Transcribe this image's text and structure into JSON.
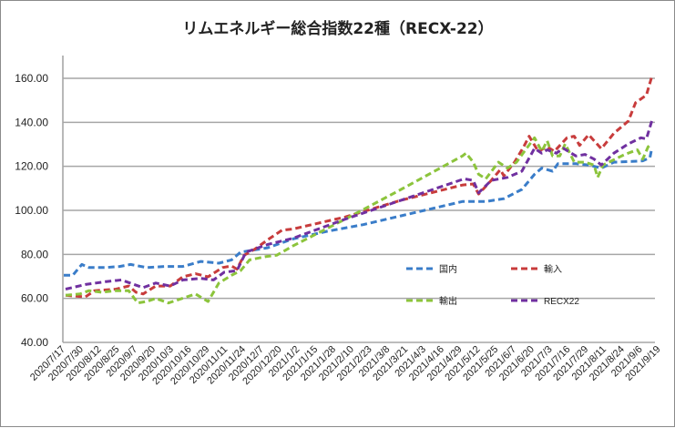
{
  "chart_data": {
    "type": "line",
    "title": "リムエネルギー総合指数22種（RECX-22）",
    "xlabel": "",
    "ylabel": "",
    "ylim": [
      40,
      160
    ],
    "yticks": [
      "40.00",
      "60.00",
      "80.00",
      "100.00",
      "120.00",
      "140.00",
      "160.00"
    ],
    "grid": true,
    "legend_placement": "inside-bottom-right",
    "x_note": "x values are positions in units of the tick-label index (0 = 2020/7/17, 32 = 2021/9/19)",
    "categories": [
      "2020/7/17",
      "2020/7/30",
      "2020/8/12",
      "2020/8/25",
      "2020/9/7",
      "2020/9/20",
      "2020/10/3",
      "2020/10/16",
      "2020/10/29",
      "2020/11/11",
      "2020/11/24",
      "2020/12/7",
      "2020/12/20",
      "2021/1/2",
      "2021/1/15",
      "2021/1/28",
      "2021/2/10",
      "2021/2/23",
      "2021/3/8",
      "2021/3/21",
      "2021/4/3",
      "2021/4/16",
      "2021/4/29",
      "2021/5/12",
      "2021/5/25",
      "2021/6/7",
      "2021/6/20",
      "2021/7/3",
      "2021/7/16",
      "2021/7/29",
      "2021/8/11",
      "2021/8/24",
      "2021/9/6",
      "2021/9/19"
    ],
    "series": [
      {
        "name": "国内",
        "color": "#3a7dc9",
        "points": [
          [
            -0.1,
            70.5
          ],
          [
            0.4,
            70.5
          ],
          [
            0.9,
            75.4
          ],
          [
            1.3,
            74
          ],
          [
            2.2,
            74
          ],
          [
            3.0,
            74.5
          ],
          [
            3.6,
            75.4
          ],
          [
            4.5,
            74
          ],
          [
            5.5,
            74.5
          ],
          [
            6.5,
            74.5
          ],
          [
            7.5,
            76.8
          ],
          [
            8.5,
            76
          ],
          [
            9.2,
            77.5
          ],
          [
            9.7,
            81
          ],
          [
            11.2,
            83
          ],
          [
            12.6,
            87
          ],
          [
            14.5,
            90.5
          ],
          [
            16.5,
            93.5
          ],
          [
            18.6,
            97.5
          ],
          [
            19.9,
            100
          ],
          [
            22,
            104
          ],
          [
            23.3,
            104
          ],
          [
            24.3,
            105.3
          ],
          [
            25.3,
            109.5
          ],
          [
            26,
            116.4
          ],
          [
            26.4,
            119.2
          ],
          [
            27,
            117.8
          ],
          [
            27.3,
            121.2
          ],
          [
            28.3,
            121.2
          ],
          [
            29,
            120.6
          ],
          [
            29.7,
            119.2
          ],
          [
            30.4,
            121.9
          ],
          [
            31.4,
            122.2
          ],
          [
            32,
            122.5
          ],
          [
            32.4,
            124
          ],
          [
            32.5,
            128
          ]
        ]
      },
      {
        "name": "輸入",
        "color": "#c83c3c",
        "points": [
          [
            0,
            61.4
          ],
          [
            1.1,
            60.7
          ],
          [
            1.6,
            63.5
          ],
          [
            2.8,
            64.2
          ],
          [
            3.5,
            65.6
          ],
          [
            3.9,
            62.8
          ],
          [
            4.3,
            62
          ],
          [
            5,
            65.6
          ],
          [
            5.8,
            65.6
          ],
          [
            6.5,
            69.8
          ],
          [
            7.2,
            71.2
          ],
          [
            7.9,
            69.8
          ],
          [
            8.7,
            74
          ],
          [
            9.2,
            74.7
          ],
          [
            9.5,
            73.3
          ],
          [
            9.9,
            79.6
          ],
          [
            10.5,
            82.4
          ],
          [
            11.2,
            86.6
          ],
          [
            12.0,
            91
          ],
          [
            12.6,
            91.5
          ],
          [
            15.5,
            97
          ],
          [
            18.6,
            104.6
          ],
          [
            22,
            111.5
          ],
          [
            22.6,
            112
          ],
          [
            22.9,
            107.4
          ],
          [
            23.6,
            113.6
          ],
          [
            24.1,
            118.5
          ],
          [
            24.3,
            115.7
          ],
          [
            24.9,
            122
          ],
          [
            25.4,
            128.9
          ],
          [
            25.7,
            133.7
          ],
          [
            26.2,
            126.8
          ],
          [
            26.7,
            128.9
          ],
          [
            27.1,
            126.8
          ],
          [
            27.8,
            133
          ],
          [
            28.2,
            133.7
          ],
          [
            28.5,
            129.5
          ],
          [
            29,
            134.4
          ],
          [
            29.7,
            128
          ],
          [
            30.4,
            135
          ],
          [
            31.2,
            140.6
          ],
          [
            31.6,
            148.9
          ],
          [
            32.2,
            152.4
          ],
          [
            32.5,
            160.7
          ]
        ]
      },
      {
        "name": "輸出",
        "color": "#8cc43c",
        "points": [
          [
            0,
            61.4
          ],
          [
            0.8,
            62
          ],
          [
            1.3,
            63.5
          ],
          [
            2,
            62.8
          ],
          [
            2.8,
            63.5
          ],
          [
            3.5,
            63.5
          ],
          [
            4,
            57.9
          ],
          [
            4.5,
            58.6
          ],
          [
            5,
            60
          ],
          [
            5.7,
            57.9
          ],
          [
            6.2,
            59.3
          ],
          [
            7.2,
            62
          ],
          [
            7.9,
            58.6
          ],
          [
            8.5,
            67
          ],
          [
            9.2,
            70.5
          ],
          [
            9.7,
            72.6
          ],
          [
            10.2,
            77.5
          ],
          [
            11.1,
            79
          ],
          [
            11.7,
            79.6
          ],
          [
            12.6,
            83.8
          ],
          [
            15.5,
            96
          ],
          [
            18.6,
            109.5
          ],
          [
            22,
            124.7
          ],
          [
            22.2,
            126
          ],
          [
            22.6,
            121.9
          ],
          [
            22.9,
            116.4
          ],
          [
            23.3,
            114.3
          ],
          [
            24,
            121.9
          ],
          [
            24.5,
            119.2
          ],
          [
            25,
            121.9
          ],
          [
            25.5,
            127.5
          ],
          [
            26,
            133
          ],
          [
            26.4,
            126.8
          ],
          [
            26.7,
            131.6
          ],
          [
            27,
            124.7
          ],
          [
            27.4,
            124.7
          ],
          [
            27.7,
            130.2
          ],
          [
            28.2,
            121.9
          ],
          [
            28.8,
            121.9
          ],
          [
            29.3,
            120.6
          ],
          [
            29.5,
            115
          ],
          [
            29.8,
            120.6
          ],
          [
            30.3,
            122.6
          ],
          [
            31,
            125.4
          ],
          [
            31.7,
            127.5
          ],
          [
            32,
            123.3
          ],
          [
            32.3,
            128.9
          ],
          [
            32.5,
            130.2
          ]
        ]
      },
      {
        "name": "RECX22",
        "color": "#7030a0",
        "points": [
          [
            0,
            64.2
          ],
          [
            1.1,
            66.3
          ],
          [
            2.3,
            67.7
          ],
          [
            3.1,
            68.4
          ],
          [
            3.8,
            66.3
          ],
          [
            4.3,
            64.9
          ],
          [
            5,
            67
          ],
          [
            5.8,
            65.6
          ],
          [
            6.5,
            68.4
          ],
          [
            7.5,
            69.1
          ],
          [
            8.2,
            68.4
          ],
          [
            8.8,
            71.9
          ],
          [
            9.5,
            72.6
          ],
          [
            10,
            81
          ],
          [
            11.2,
            84.5
          ],
          [
            12.6,
            87.3
          ],
          [
            15.5,
            96
          ],
          [
            18.6,
            104.6
          ],
          [
            22.1,
            114.3
          ],
          [
            22.6,
            113.6
          ],
          [
            22.9,
            108
          ],
          [
            23.6,
            113.6
          ],
          [
            24.5,
            115
          ],
          [
            25.3,
            117.8
          ],
          [
            26,
            128.2
          ],
          [
            26.4,
            126
          ],
          [
            26.7,
            127.5
          ],
          [
            27.2,
            126
          ],
          [
            27.6,
            128.2
          ],
          [
            28.3,
            124.7
          ],
          [
            28.8,
            125.4
          ],
          [
            29.3,
            123.3
          ],
          [
            29.7,
            120.6
          ],
          [
            30.4,
            126
          ],
          [
            31.2,
            130.2
          ],
          [
            31.9,
            133
          ],
          [
            32.2,
            132.5
          ],
          [
            32.5,
            140.6
          ]
        ]
      }
    ]
  }
}
